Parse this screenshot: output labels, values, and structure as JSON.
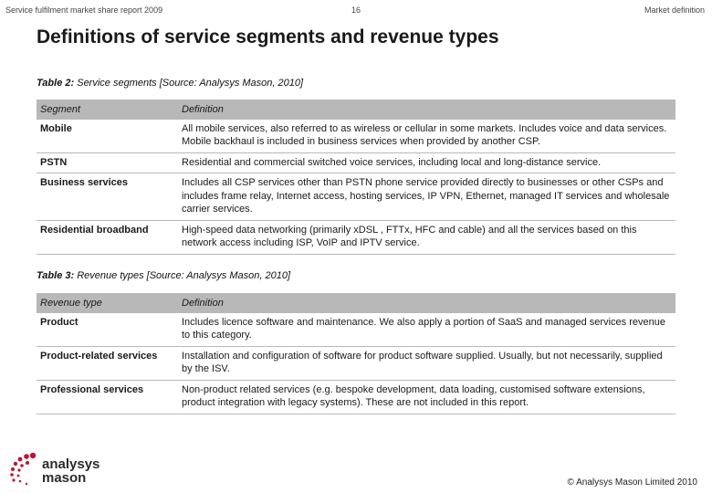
{
  "header": {
    "left": "Service fulfilment market share report 2009",
    "page_number": "16",
    "right": "Market definition"
  },
  "title": "Definitions of service segments and revenue types",
  "table2": {
    "caption_label": "Table 2:",
    "caption_text": " Service segments [Source: Analysys Mason, 2010]",
    "headers": [
      "Segment",
      "Definition"
    ],
    "rows": [
      {
        "name": "Mobile",
        "definition": "All mobile services, also referred to as wireless or cellular in some markets. Includes voice and data services. Mobile backhaul is included in business services when provided by another CSP."
      },
      {
        "name": "PSTN",
        "definition": "Residential and commercial switched voice services, including local and long-distance service."
      },
      {
        "name": "Business services",
        "definition": "Includes all CSP services other than PSTN phone service provided directly to businesses or other CSPs and includes frame relay, Internet access, hosting services, IP VPN, Ethernet, managed IT services and wholesale carrier services."
      },
      {
        "name": "Residential broadband",
        "definition": "High-speed data networking (primarily xDSL , FTTx, HFC and cable) and all the services based on this network access including ISP, VoIP and IPTV service."
      }
    ]
  },
  "table3": {
    "caption_label": "Table 3:",
    "caption_text": " Revenue types [Source: Analysys Mason, 2010]",
    "headers": [
      "Revenue type",
      "Definition"
    ],
    "rows": [
      {
        "name": "Product",
        "definition": "Includes licence software and maintenance. We also apply a portion of SaaS and managed services revenue to this category."
      },
      {
        "name": "Product-related services",
        "definition": "Installation and configuration of software for product software supplied. Usually, but not necessarily, supplied by the ISV."
      },
      {
        "name": "Professional services",
        "definition": "Non-product related services (e.g. bespoke development, data loading, customised software extensions, product integration with legacy systems). These are not included in this report."
      }
    ]
  },
  "logo": {
    "line1": "analysys",
    "line2": "mason",
    "color": "#c4122f"
  },
  "copyright": "© Analysys Mason Limited 2010"
}
